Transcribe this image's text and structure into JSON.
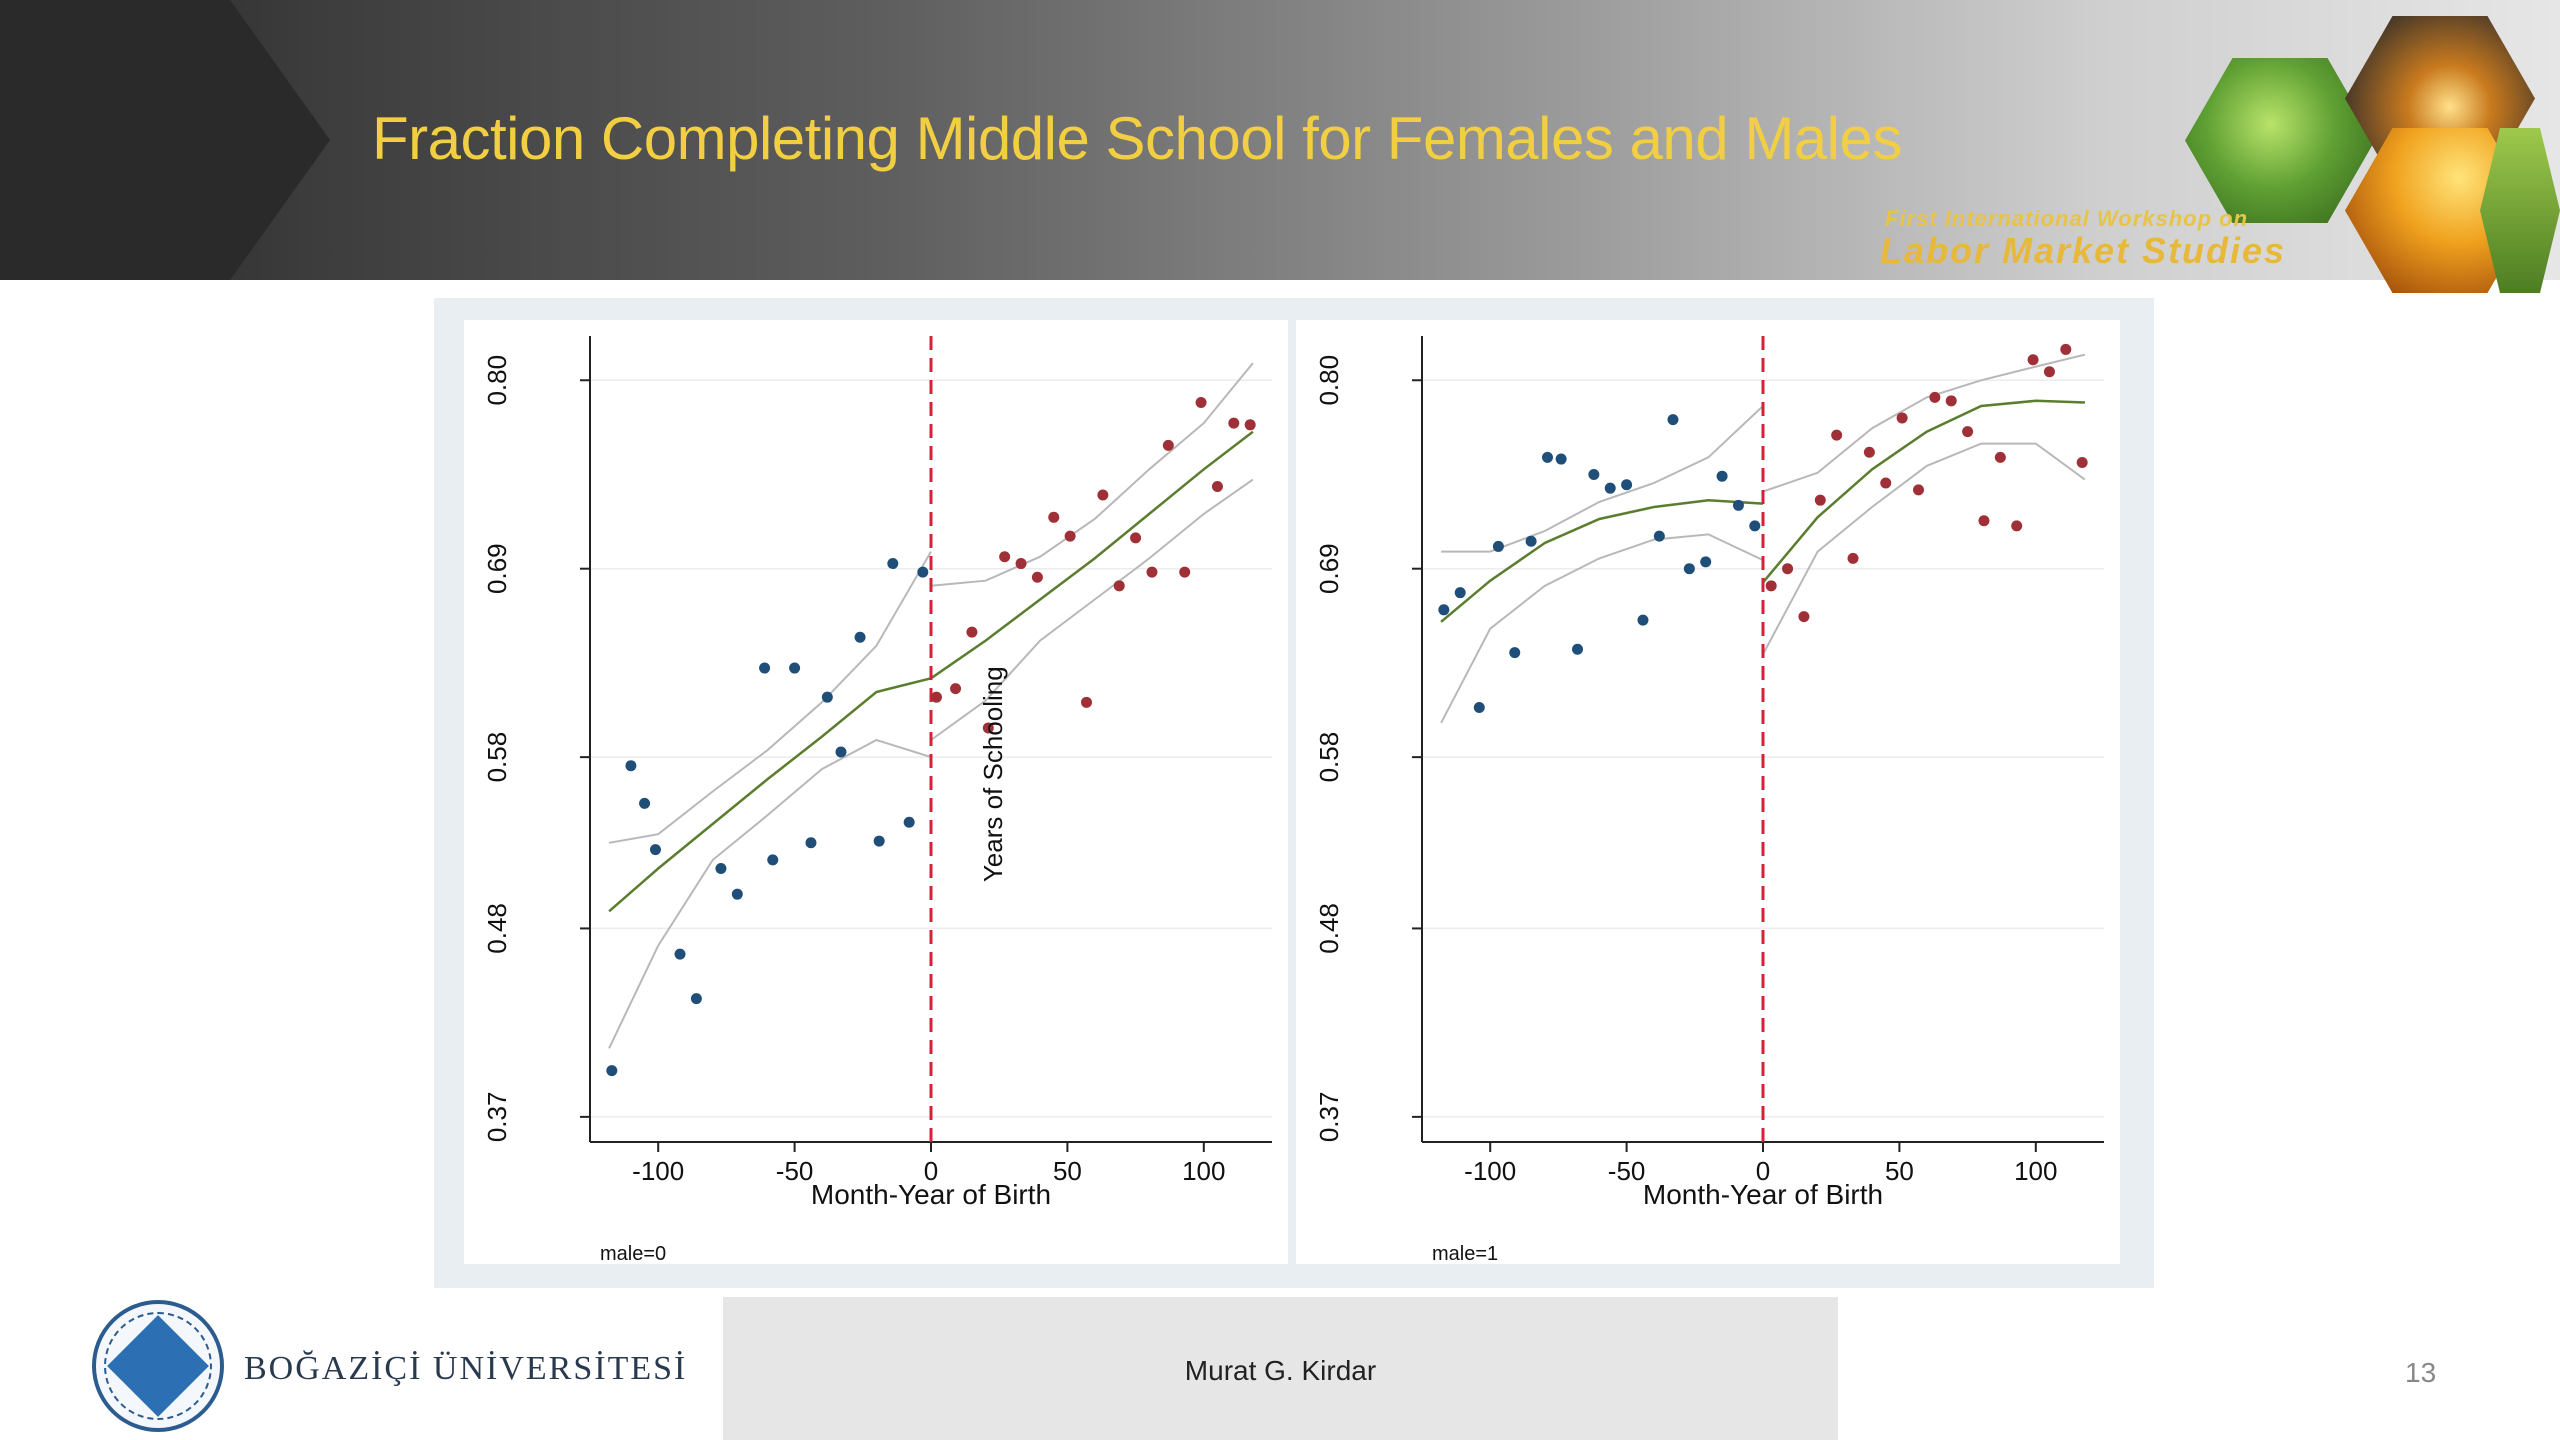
{
  "slide": {
    "title": "Fraction Completing Middle School for Females and Males",
    "page_number": "13",
    "author": "Murat G. Kirdar",
    "university": "BOĞAZİÇİ ÜNİVERSİTESİ",
    "workshop_line1": "First International Workshop on",
    "workshop_line2": "Labor Market Studies"
  },
  "colors": {
    "title": "#f2cf42",
    "pre_points": "#1f4e79",
    "post_points": "#a03038",
    "fit_line": "#5a7d2e",
    "ci_line": "#b8b8b8",
    "cutoff_line": "#d6203a"
  },
  "chart_data": [
    {
      "type": "scatter",
      "panel_label": "male=0",
      "xlabel": "Month-Year of Birth",
      "ylabel": "",
      "xlim": [
        -125,
        125
      ],
      "ylim": [
        0.36,
        0.82
      ],
      "xticks": [
        "-100",
        "-50",
        "0",
        "50",
        "100"
      ],
      "yticks": [
        "0.37",
        "0.48",
        "0.58",
        "0.69",
        "0.80"
      ],
      "cutoff_x": 0,
      "series": [
        {
          "group": "pre",
          "x": [
            -117,
            -110,
            -105,
            -101,
            -92,
            -86,
            -77,
            -71,
            -61,
            -58,
            -50,
            -44,
            -38,
            -33,
            -26,
            -19,
            -14,
            -8,
            -3
          ],
          "y": [
            0.397,
            0.575,
            0.553,
            0.526,
            0.465,
            0.439,
            0.515,
            0.5,
            0.632,
            0.52,
            0.632,
            0.53,
            0.615,
            0.583,
            0.65,
            0.531,
            0.693,
            0.542,
            0.688
          ]
        },
        {
          "group": "post",
          "x": [
            2,
            9,
            15,
            21,
            27,
            33,
            39,
            45,
            51,
            57,
            63,
            69,
            75,
            81,
            87,
            93,
            99,
            105,
            111,
            117
          ],
          "y": [
            0.615,
            0.62,
            0.653,
            0.597,
            0.697,
            0.693,
            0.685,
            0.72,
            0.709,
            0.612,
            0.733,
            0.68,
            0.708,
            0.688,
            0.762,
            0.688,
            0.787,
            0.738,
            0.775,
            0.774
          ]
        }
      ],
      "fit": {
        "pre": {
          "x": [
            -118,
            -100,
            -80,
            -60,
            -40,
            -20,
            0
          ],
          "y": [
            0.49,
            0.515,
            0.541,
            0.567,
            0.592,
            0.618,
            0.626
          ]
        },
        "post": {
          "x": [
            0,
            20,
            40,
            60,
            80,
            100,
            118
          ],
          "y": [
            0.626,
            0.648,
            0.672,
            0.696,
            0.722,
            0.748,
            0.77
          ]
        }
      },
      "ci_upper": {
        "pre": {
          "x": [
            -118,
            -100,
            -80,
            -60,
            -40,
            -20,
            0
          ],
          "y": [
            0.53,
            0.535,
            0.56,
            0.584,
            0.612,
            0.645,
            0.7
          ]
        },
        "post": {
          "x": [
            0,
            20,
            40,
            60,
            80,
            100,
            118
          ],
          "y": [
            0.68,
            0.683,
            0.697,
            0.719,
            0.748,
            0.775,
            0.81
          ]
        }
      },
      "ci_lower": {
        "pre": {
          "x": [
            -118,
            -100,
            -80,
            -60,
            -40,
            -20,
            0
          ],
          "y": [
            0.41,
            0.47,
            0.52,
            0.546,
            0.573,
            0.59,
            0.58
          ]
        },
        "post": {
          "x": [
            0,
            20,
            40,
            60,
            80,
            100,
            118
          ],
          "y": [
            0.59,
            0.613,
            0.648,
            0.672,
            0.696,
            0.722,
            0.742
          ]
        }
      },
      "annotation": "Years of Schooling"
    },
    {
      "type": "scatter",
      "panel_label": "male=1",
      "xlabel": "Month-Year of Birth",
      "ylabel": "",
      "xlim": [
        -125,
        125
      ],
      "ylim": [
        0.36,
        0.82
      ],
      "xticks": [
        "-100",
        "-50",
        "0",
        "50",
        "100"
      ],
      "yticks": [
        "0.37",
        "0.48",
        "0.58",
        "0.69",
        "0.80"
      ],
      "cutoff_x": 0,
      "series": [
        {
          "group": "pre",
          "x": [
            -117,
            -111,
            -104,
            -97,
            -91,
            -85,
            -79,
            -74,
            -68,
            -62,
            -56,
            -50,
            -44,
            -38,
            -33,
            -27,
            -21,
            -15,
            -9,
            -3
          ],
          "y": [
            0.666,
            0.676,
            0.609,
            0.703,
            0.641,
            0.706,
            0.755,
            0.754,
            0.643,
            0.745,
            0.737,
            0.739,
            0.66,
            0.709,
            0.777,
            0.69,
            0.694,
            0.744,
            0.727,
            0.715
          ]
        },
        {
          "group": "post",
          "x": [
            3,
            9,
            15,
            21,
            27,
            33,
            39,
            45,
            51,
            57,
            63,
            69,
            75,
            81,
            87,
            93,
            99,
            105,
            111,
            117
          ],
          "y": [
            0.68,
            0.69,
            0.662,
            0.73,
            0.768,
            0.696,
            0.758,
            0.74,
            0.778,
            0.736,
            0.79,
            0.788,
            0.77,
            0.718,
            0.755,
            0.715,
            0.812,
            0.805,
            0.818,
            0.752
          ]
        }
      ],
      "fit": {
        "pre": {
          "x": [
            -118,
            -100,
            -80,
            -60,
            -40,
            -20,
            0
          ],
          "y": [
            0.659,
            0.683,
            0.705,
            0.719,
            0.726,
            0.73,
            0.728
          ]
        },
        "post": {
          "x": [
            0,
            20,
            40,
            60,
            80,
            100,
            118
          ],
          "y": [
            0.682,
            0.72,
            0.748,
            0.77,
            0.785,
            0.788,
            0.787
          ]
        }
      },
      "ci_upper": {
        "pre": {
          "x": [
            -118,
            -100,
            -80,
            -60,
            -40,
            -20,
            0
          ],
          "y": [
            0.7,
            0.7,
            0.712,
            0.729,
            0.74,
            0.755,
            0.785
          ]
        },
        "post": {
          "x": [
            0,
            20,
            40,
            60,
            80,
            100,
            118
          ],
          "y": [
            0.735,
            0.746,
            0.772,
            0.79,
            0.8,
            0.808,
            0.815
          ]
        }
      },
      "ci_lower": {
        "pre": {
          "x": [
            -118,
            -100,
            -80,
            -60,
            -40,
            -20,
            0
          ],
          "y": [
            0.6,
            0.655,
            0.68,
            0.696,
            0.707,
            0.71,
            0.695
          ]
        },
        "post": {
          "x": [
            0,
            20,
            40,
            60,
            80,
            100,
            118
          ],
          "y": [
            0.64,
            0.7,
            0.726,
            0.75,
            0.763,
            0.763,
            0.742
          ]
        }
      }
    }
  ]
}
